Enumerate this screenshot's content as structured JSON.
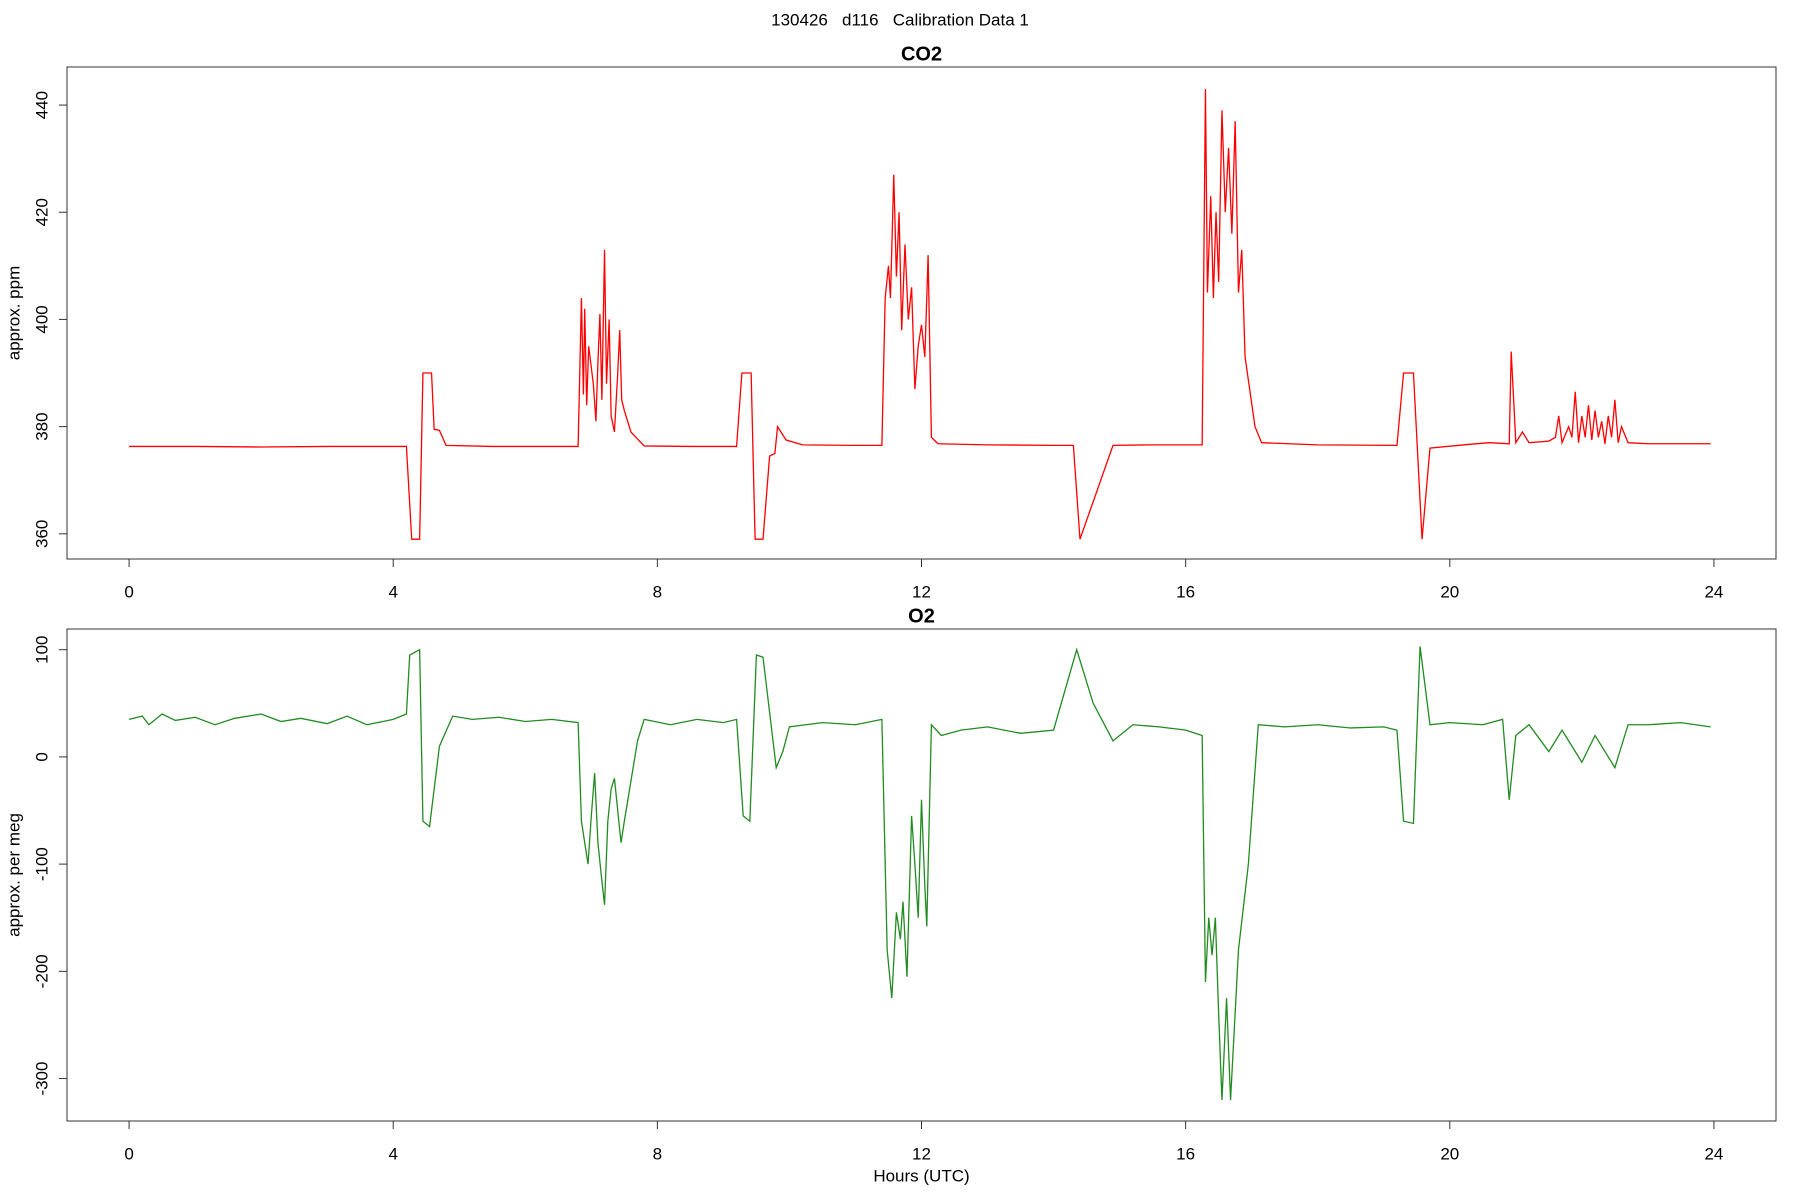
{
  "title": "130426   d116   Calibration Data 1",
  "chart_data": [
    {
      "type": "line",
      "title": "CO2",
      "y_label": "approx. ppm",
      "color": "#ff0000",
      "xlim": [
        -0.94,
        24.94
      ],
      "xticks": [
        0,
        4,
        8,
        12,
        16,
        20,
        24
      ],
      "ylim": [
        355.3,
        447.1
      ],
      "yticks": [
        360,
        380,
        400,
        420,
        440
      ],
      "x": [
        0,
        1,
        2,
        3,
        4.2,
        4.28,
        4.4,
        4.45,
        4.58,
        4.62,
        4.7,
        4.8,
        5.5,
        6.5,
        6.8,
        6.85,
        6.88,
        6.9,
        6.93,
        6.96,
        7.0,
        7.03,
        7.07,
        7.1,
        7.13,
        7.16,
        7.2,
        7.23,
        7.27,
        7.3,
        7.35,
        7.4,
        7.43,
        7.46,
        7.5,
        7.6,
        7.8,
        8.5,
        9.2,
        9.28,
        9.42,
        9.48,
        9.6,
        9.7,
        9.78,
        9.82,
        9.95,
        10.2,
        11,
        11.4,
        11.45,
        11.5,
        11.53,
        11.58,
        11.62,
        11.66,
        11.7,
        11.75,
        11.8,
        11.85,
        11.9,
        11.95,
        12.0,
        12.05,
        12.08,
        12.1,
        12.15,
        12.25,
        13,
        14,
        14.3,
        14.4,
        14.9,
        15.5,
        16.25,
        16.3,
        16.33,
        16.38,
        16.42,
        16.46,
        16.5,
        16.55,
        16.6,
        16.65,
        16.7,
        16.75,
        16.8,
        16.85,
        16.9,
        17.05,
        17.15,
        18,
        19.2,
        19.3,
        19.45,
        19.58,
        19.7,
        20.3,
        20.6,
        20.9,
        20.93,
        21.0,
        21.1,
        21.2,
        21.5,
        21.6,
        21.65,
        21.7,
        21.8,
        21.85,
        21.9,
        21.95,
        22.0,
        22.05,
        22.1,
        22.15,
        22.2,
        22.25,
        22.3,
        22.35,
        22.4,
        22.45,
        22.5,
        22.55,
        22.6,
        22.7,
        23,
        23.95
      ],
      "values": [
        376.3,
        376.3,
        376.2,
        376.3,
        376.3,
        359,
        359,
        390,
        390,
        379.5,
        379.3,
        376.5,
        376.3,
        376.3,
        376.3,
        404,
        386,
        402,
        384,
        395,
        391,
        388,
        381,
        392,
        401,
        385,
        413,
        388,
        400,
        382,
        379,
        390,
        398,
        385,
        383,
        379,
        376.4,
        376.3,
        376.3,
        390,
        390,
        359,
        359,
        374.5,
        375,
        380,
        377.5,
        376.6,
        376.5,
        376.5,
        404,
        410,
        404,
        427,
        408,
        420,
        398,
        414,
        400,
        406,
        387,
        395,
        399,
        393,
        404,
        412,
        378,
        376.8,
        376.6,
        376.5,
        376.5,
        359,
        376.5,
        376.6,
        376.6,
        443,
        405,
        423,
        404,
        420,
        407,
        439,
        420,
        432,
        416,
        437,
        405,
        413,
        393,
        380,
        377,
        376.6,
        376.5,
        390,
        390,
        359,
        376,
        376.7,
        377,
        376.8,
        394,
        377,
        379,
        377,
        377.3,
        378,
        382,
        377,
        380,
        378,
        386.5,
        377,
        382,
        378,
        384,
        377.5,
        383,
        378,
        381,
        376.8,
        382,
        378,
        385,
        377,
        380,
        377,
        376.8,
        376.8
      ]
    },
    {
      "type": "line",
      "title": "O2",
      "y_label": "approx. per meg",
      "x_label": "Hours (UTC)",
      "color": "#228b22",
      "xlim": [
        -0.94,
        24.94
      ],
      "xticks": [
        0,
        4,
        8,
        12,
        16,
        20,
        24
      ],
      "ylim": [
        -339.6,
        119.3
      ],
      "yticks": [
        -300,
        -200,
        -100,
        0,
        100
      ],
      "x": [
        0,
        0.2,
        0.3,
        0.5,
        0.7,
        1,
        1.3,
        1.6,
        2,
        2.3,
        2.6,
        3,
        3.3,
        3.6,
        4,
        4.2,
        4.25,
        4.4,
        4.45,
        4.55,
        4.7,
        4.9,
        5.2,
        5.6,
        6,
        6.4,
        6.8,
        6.85,
        6.95,
        7.0,
        7.05,
        7.1,
        7.15,
        7.2,
        7.25,
        7.3,
        7.35,
        7.45,
        7.5,
        7.7,
        7.8,
        8.2,
        8.6,
        9.0,
        9.2,
        9.3,
        9.4,
        9.5,
        9.6,
        9.8,
        9.9,
        10.0,
        10.5,
        11,
        11.4,
        11.48,
        11.55,
        11.62,
        11.68,
        11.72,
        11.78,
        11.85,
        11.9,
        11.95,
        12.0,
        12.05,
        12.08,
        12.15,
        12.3,
        12.6,
        13,
        13.5,
        14,
        14.35,
        14.6,
        14.9,
        15.2,
        15.6,
        16,
        16.25,
        16.3,
        16.35,
        16.4,
        16.45,
        16.5,
        16.55,
        16.62,
        16.68,
        16.8,
        16.95,
        17.1,
        17.5,
        18,
        18.5,
        19,
        19.2,
        19.3,
        19.45,
        19.55,
        19.7,
        20,
        20.5,
        20.8,
        20.9,
        21,
        21.2,
        21.5,
        21.7,
        22,
        22.2,
        22.5,
        22.7,
        23,
        23.5,
        23.95
      ],
      "values": [
        35,
        38,
        30,
        40,
        34,
        37,
        30,
        36,
        40,
        33,
        36,
        31,
        38,
        30,
        35,
        40,
        95,
        100,
        -60,
        -65,
        10,
        38,
        35,
        37,
        33,
        35,
        32,
        -60,
        -100,
        -55,
        -15,
        -80,
        -110,
        -138,
        -60,
        -30,
        -20,
        -80,
        -60,
        15,
        35,
        30,
        35,
        32,
        35,
        -55,
        -60,
        95,
        93,
        -10,
        5,
        28,
        32,
        30,
        35,
        -180,
        -225,
        -145,
        -170,
        -135,
        -205,
        -55,
        -100,
        -150,
        -40,
        -120,
        -158,
        30,
        20,
        25,
        28,
        22,
        25,
        100,
        50,
        15,
        30,
        28,
        25,
        20,
        -210,
        -150,
        -185,
        -150,
        -240,
        -320,
        -225,
        -320,
        -180,
        -100,
        30,
        28,
        30,
        27,
        28,
        25,
        -60,
        -62,
        103,
        30,
        32,
        30,
        35,
        -40,
        20,
        30,
        5,
        25,
        -5,
        20,
        -10,
        30,
        30,
        32,
        28
      ]
    }
  ]
}
